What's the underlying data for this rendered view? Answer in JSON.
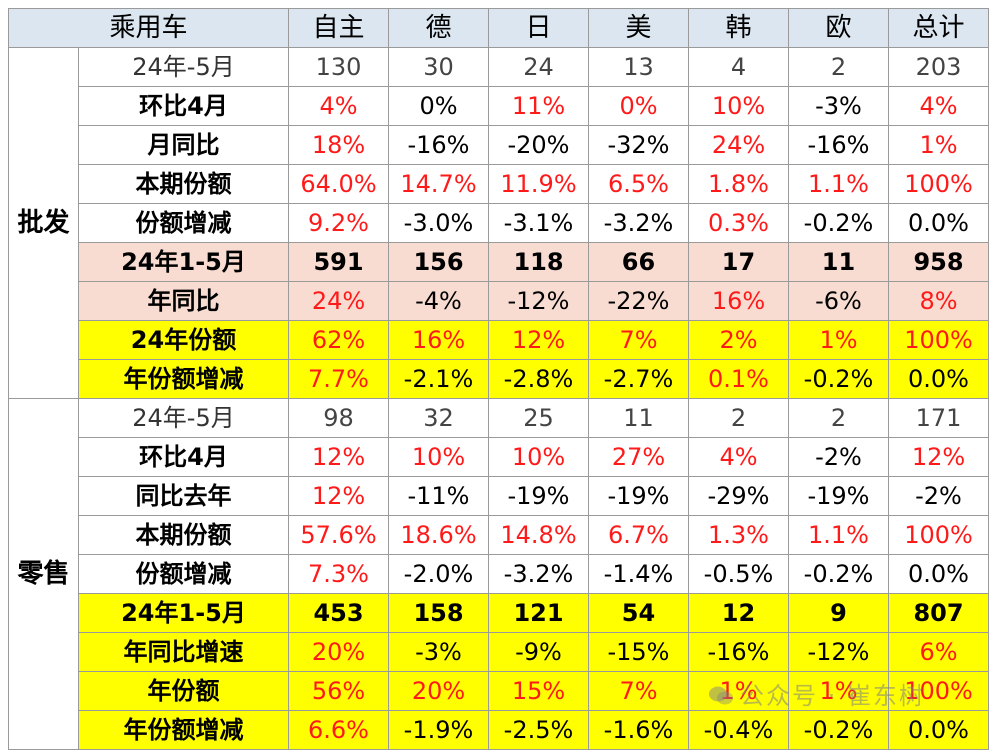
{
  "header": {
    "corner": "乘用车",
    "columns": [
      "自主",
      "德",
      "日",
      "美",
      "韩",
      "欧",
      "总计"
    ]
  },
  "groups": [
    {
      "name": "批发",
      "rows": [
        {
          "label": "24年-5月",
          "style": "light",
          "cells": [
            {
              "v": "130"
            },
            {
              "v": "30"
            },
            {
              "v": "24"
            },
            {
              "v": "13"
            },
            {
              "v": "4"
            },
            {
              "v": "2"
            },
            {
              "v": "203"
            }
          ]
        },
        {
          "label": "环比4月",
          "cells": [
            {
              "v": "4%",
              "red": true
            },
            {
              "v": "0%"
            },
            {
              "v": "11%",
              "red": true
            },
            {
              "v": "0%",
              "red": true
            },
            {
              "v": "10%",
              "red": true
            },
            {
              "v": "-3%"
            },
            {
              "v": "4%",
              "red": true
            }
          ]
        },
        {
          "label": "月同比",
          "cells": [
            {
              "v": "18%",
              "red": true
            },
            {
              "v": "-16%"
            },
            {
              "v": "-20%"
            },
            {
              "v": "-32%"
            },
            {
              "v": "24%",
              "red": true
            },
            {
              "v": "-16%"
            },
            {
              "v": "1%",
              "red": true
            }
          ]
        },
        {
          "label": "本期份额",
          "cells": [
            {
              "v": "64.0%",
              "red": true
            },
            {
              "v": "14.7%",
              "red": true
            },
            {
              "v": "11.9%",
              "red": true
            },
            {
              "v": "6.5%",
              "red": true
            },
            {
              "v": "1.8%",
              "red": true
            },
            {
              "v": "1.1%",
              "red": true
            },
            {
              "v": "100%",
              "red": true
            }
          ]
        },
        {
          "label": "份额增减",
          "cells": [
            {
              "v": "9.2%",
              "red": true
            },
            {
              "v": "-3.0%"
            },
            {
              "v": "-3.1%"
            },
            {
              "v": "-3.2%"
            },
            {
              "v": "0.3%",
              "red": true
            },
            {
              "v": "-0.2%"
            },
            {
              "v": "0.0%"
            }
          ]
        },
        {
          "label": "24年1-5月",
          "style": "pink",
          "cells": [
            {
              "v": "591",
              "bold": true
            },
            {
              "v": "156",
              "bold": true
            },
            {
              "v": "118",
              "bold": true
            },
            {
              "v": "66",
              "bold": true
            },
            {
              "v": "17",
              "bold": true
            },
            {
              "v": "11",
              "bold": true
            },
            {
              "v": "958",
              "bold": true
            }
          ]
        },
        {
          "label": "年同比",
          "style": "pink",
          "cells": [
            {
              "v": "24%",
              "red": true
            },
            {
              "v": "-4%"
            },
            {
              "v": "-12%"
            },
            {
              "v": "-22%"
            },
            {
              "v": "16%",
              "red": true
            },
            {
              "v": "-6%"
            },
            {
              "v": "8%",
              "red": true
            }
          ]
        },
        {
          "label": "24年份额",
          "style": "yellow",
          "cells": [
            {
              "v": "62%",
              "red": true
            },
            {
              "v": "16%",
              "red": true
            },
            {
              "v": "12%",
              "red": true
            },
            {
              "v": "7%",
              "red": true
            },
            {
              "v": "2%",
              "red": true
            },
            {
              "v": "1%",
              "red": true
            },
            {
              "v": "100%",
              "red": true
            }
          ]
        },
        {
          "label": "年份额增减",
          "style": "yellow",
          "cells": [
            {
              "v": "7.7%",
              "red": true
            },
            {
              "v": "-2.1%"
            },
            {
              "v": "-2.8%"
            },
            {
              "v": "-2.7%"
            },
            {
              "v": "0.1%",
              "red": true
            },
            {
              "v": "-0.2%"
            },
            {
              "v": "0.0%"
            }
          ]
        }
      ]
    },
    {
      "name": "零售",
      "rows": [
        {
          "label": "24年-5月",
          "style": "light",
          "cells": [
            {
              "v": "98"
            },
            {
              "v": "32"
            },
            {
              "v": "25"
            },
            {
              "v": "11"
            },
            {
              "v": "2"
            },
            {
              "v": "2"
            },
            {
              "v": "171"
            }
          ]
        },
        {
          "label": "环比4月",
          "cells": [
            {
              "v": "12%",
              "red": true
            },
            {
              "v": "10%",
              "red": true
            },
            {
              "v": "10%",
              "red": true
            },
            {
              "v": "27%",
              "red": true
            },
            {
              "v": "4%",
              "red": true
            },
            {
              "v": "-2%"
            },
            {
              "v": "12%",
              "red": true
            }
          ]
        },
        {
          "label": "同比去年",
          "cells": [
            {
              "v": "12%",
              "red": true
            },
            {
              "v": "-11%"
            },
            {
              "v": "-19%"
            },
            {
              "v": "-19%"
            },
            {
              "v": "-29%"
            },
            {
              "v": "-19%"
            },
            {
              "v": "-2%"
            }
          ]
        },
        {
          "label": "本期份额",
          "cells": [
            {
              "v": "57.6%",
              "red": true
            },
            {
              "v": "18.6%",
              "red": true
            },
            {
              "v": "14.8%",
              "red": true
            },
            {
              "v": "6.7%",
              "red": true
            },
            {
              "v": "1.3%",
              "red": true
            },
            {
              "v": "1.1%",
              "red": true
            },
            {
              "v": "100%",
              "red": true
            }
          ]
        },
        {
          "label": "份额增减",
          "cells": [
            {
              "v": "7.3%",
              "red": true
            },
            {
              "v": "-2.0%"
            },
            {
              "v": "-3.2%"
            },
            {
              "v": "-1.4%"
            },
            {
              "v": "-0.5%"
            },
            {
              "v": "-0.2%"
            },
            {
              "v": "0.0%"
            }
          ]
        },
        {
          "label": "24年1-5月",
          "style": "yellow",
          "cells": [
            {
              "v": "453",
              "bold": true
            },
            {
              "v": "158",
              "bold": true
            },
            {
              "v": "121",
              "bold": true
            },
            {
              "v": "54",
              "bold": true
            },
            {
              "v": "12",
              "bold": true
            },
            {
              "v": "9",
              "bold": true
            },
            {
              "v": "807",
              "bold": true
            }
          ]
        },
        {
          "label": "年同比增速",
          "style": "yellow",
          "cells": [
            {
              "v": "20%",
              "red": true
            },
            {
              "v": "-3%"
            },
            {
              "v": "-9%"
            },
            {
              "v": "-15%"
            },
            {
              "v": "-16%"
            },
            {
              "v": "-12%"
            },
            {
              "v": "6%",
              "red": true
            }
          ]
        },
        {
          "label": "年份额",
          "style": "yellow",
          "cells": [
            {
              "v": "56%",
              "red": true
            },
            {
              "v": "20%",
              "red": true
            },
            {
              "v": "15%",
              "red": true
            },
            {
              "v": "7%",
              "red": true
            },
            {
              "v": "1%",
              "red": true
            },
            {
              "v": "1%",
              "red": true
            },
            {
              "v": "100%",
              "red": true
            }
          ]
        },
        {
          "label": "年份额增减",
          "style": "yellow",
          "cells": [
            {
              "v": "6.6%",
              "red": true
            },
            {
              "v": "-1.9%"
            },
            {
              "v": "-2.5%"
            },
            {
              "v": "-1.6%"
            },
            {
              "v": "-0.4%"
            },
            {
              "v": "-0.2%"
            },
            {
              "v": "0.0%"
            }
          ]
        }
      ]
    }
  ],
  "watermark": {
    "icon": "wechat-icon",
    "text": "公众号 · 崔东树"
  }
}
